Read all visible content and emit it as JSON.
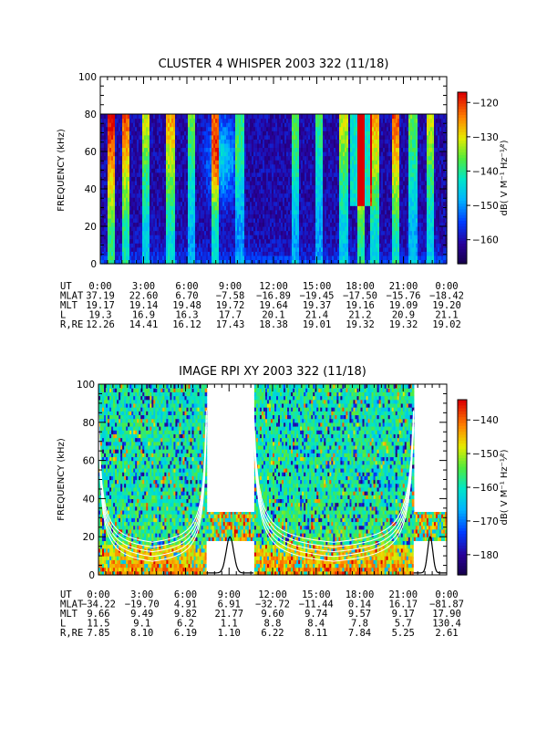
{
  "chart_data": [
    {
      "type": "heatmap",
      "title": "CLUSTER 4 WHISPER 2003 322 (11/18)",
      "ylabel": "FREQUENCY (kHz)",
      "colorbar_label": "dB( V M⁻¹ Hz⁻¹⁄²)",
      "x_ticks": [
        "0:00",
        "3:00",
        "6:00",
        "9:00",
        "12:00",
        "15:00",
        "18:00",
        "21:00",
        "0:00"
      ],
      "y_ticks": [
        0,
        20,
        40,
        60,
        80,
        100
      ],
      "ylim": [
        0,
        100
      ],
      "colorbar_ticks": [
        -120,
        -130,
        -140,
        -150,
        -160
      ],
      "colorbar_range": [
        -167,
        -117
      ],
      "data_top_khz": 80,
      "ephemeris": [
        {
          "name": "UT",
          "values": [
            "0:00",
            "3:00",
            "6:00",
            "9:00",
            "12:00",
            "15:00",
            "18:00",
            "21:00",
            "0:00"
          ]
        },
        {
          "name": "MLAT",
          "values": [
            "37.19",
            "22.60",
            "6.70",
            "−7.58",
            "−16.89",
            "−19.45",
            "−17.50",
            "−15.76",
            "−18.42"
          ]
        },
        {
          "name": "MLT",
          "values": [
            "19.17",
            "19.14",
            "19.48",
            "19.72",
            "19.64",
            "19.37",
            "19.16",
            "19.09",
            "19.20"
          ]
        },
        {
          "name": "L",
          "values": [
            "19.3",
            "16.9",
            "16.3",
            "17.7",
            "20.1",
            "21.4",
            "21.2",
            "20.9",
            "21.1"
          ]
        },
        {
          "name": "R,RE",
          "values": [
            "12.26",
            "14.41",
            "16.12",
            "17.43",
            "18.38",
            "19.01",
            "19.32",
            "19.32",
            "19.02"
          ]
        }
      ]
    },
    {
      "type": "heatmap",
      "title": "IMAGE RPI XY 2003 322 (11/18)",
      "ylabel": "FREQUENCY (kHz)",
      "colorbar_label": "dB( V M⁻¹ Hz⁻¹⁄²)",
      "x_ticks": [
        "0:00",
        "3:00",
        "6:00",
        "9:00",
        "12:00",
        "15:00",
        "18:00",
        "21:00",
        "0:00"
      ],
      "y_ticks": [
        0,
        20,
        40,
        60,
        80,
        100
      ],
      "ylim": [
        0,
        100
      ],
      "colorbar_ticks": [
        -140,
        -150,
        -160,
        -170,
        -180
      ],
      "colorbar_range": [
        -186,
        -134
      ],
      "ephemeris": [
        {
          "name": "UT",
          "values": [
            "0:00",
            "3:00",
            "6:00",
            "9:00",
            "12:00",
            "15:00",
            "18:00",
            "21:00",
            "0:00"
          ]
        },
        {
          "name": "MLAT",
          "values": [
            "−34.22",
            "−19.70",
            "4.91",
            "6.91",
            "−32.72",
            "−11.44",
            "0.14",
            "16.17",
            "−81.87"
          ]
        },
        {
          "name": "MLT",
          "values": [
            "9.66",
            "9.49",
            "9.82",
            "21.77",
            "9.60",
            "9.74",
            "9.57",
            "9.17",
            "17.90"
          ]
        },
        {
          "name": "L",
          "values": [
            "11.5",
            "9.1",
            "6.2",
            "1.1",
            "8.8",
            "8.4",
            "7.8",
            "5.7",
            "130.4"
          ]
        },
        {
          "name": "R,RE",
          "values": [
            "7.85",
            "8.10",
            "6.19",
            "1.10",
            "6.22",
            "8.11",
            "7.84",
            "5.25",
            "2.61"
          ]
        }
      ]
    }
  ]
}
